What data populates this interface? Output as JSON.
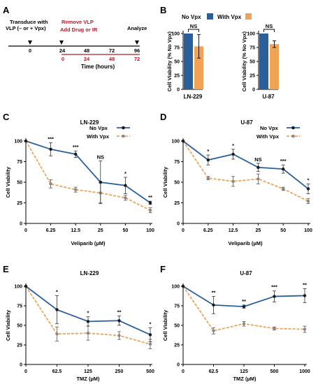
{
  "figure": {
    "panel_letters": [
      "A",
      "B",
      "C",
      "D",
      "E",
      "F"
    ],
    "timeline": {
      "top_labels": {
        "transduce": "Transduce with VLP (– or + Vpx)",
        "remove": "Remove VLP",
        "add": "Add Drug or IR",
        "analyze": "Analyze"
      },
      "axis_ticks": [
        "0",
        "24",
        "48",
        "72",
        "96"
      ],
      "red_ticks": [
        "0",
        "24",
        "48",
        "72"
      ],
      "axis_label": "Time (hours)",
      "colors": {
        "red": "#b5192b",
        "black": "#000000"
      }
    },
    "legend_b": {
      "no_vpx": "No Vpx",
      "with_vpx": "With Vpx"
    },
    "legend_line": {
      "no_vpx": "No Vpx",
      "with_vpx": "With Vpx"
    },
    "colors": {
      "no_vpx": "#2a5f9e",
      "with_vpx": "#f0a355",
      "with_vpx_marker": "#888888",
      "no_vpx_marker": "#1a1a1a"
    }
  },
  "chart_data": [
    {
      "panel": "B",
      "type": "bar",
      "title": "LN-229",
      "ylabel": "Cell Viability (% No Vpx)",
      "ylim": [
        0,
        100
      ],
      "ytick_labels": [
        "0",
        "25",
        "50",
        "75",
        "100"
      ],
      "categories": [
        "No Vpx",
        "With Vpx"
      ],
      "values": [
        100,
        77
      ],
      "errors": [
        0,
        21
      ],
      "annotation": "NS"
    },
    {
      "panel": "B",
      "type": "bar",
      "title": "U-87",
      "ylabel": "Cell Viability (% No Vpx)",
      "ylim": [
        0,
        100
      ],
      "ytick_labels": [
        "0",
        "25",
        "50",
        "75",
        "100"
      ],
      "categories": [
        "No Vpx",
        "With Vpx"
      ],
      "values": [
        100,
        81
      ],
      "errors": [
        0,
        6
      ],
      "annotation": "NS"
    },
    {
      "panel": "C",
      "type": "line",
      "title": "LN-229",
      "xlabel": "Veliparib (µM)",
      "ylabel": "Cell Viability",
      "x": [
        "0",
        "6.25",
        "12.5",
        "25",
        "50",
        "100"
      ],
      "ylim": [
        0,
        100
      ],
      "ytick_labels": [
        "0",
        "25",
        "50",
        "75",
        "100"
      ],
      "series": [
        {
          "name": "No Vpx",
          "values": [
            100,
            90,
            84,
            50,
            46,
            25
          ],
          "errors": [
            0,
            8,
            4,
            26,
            10,
            2
          ]
        },
        {
          "name": "With Vpx",
          "values": [
            100,
            48,
            41,
            37,
            31,
            16
          ],
          "errors": [
            0,
            5,
            3,
            12,
            3,
            3
          ]
        }
      ],
      "significance": [
        "",
        "***",
        "***",
        "NS",
        "*",
        "**"
      ]
    },
    {
      "panel": "D",
      "type": "line",
      "title": "U-87",
      "xlabel": "Veliparib (µM)",
      "ylabel": "Cell Viability",
      "x": [
        "0",
        "6.25",
        "12.5",
        "25",
        "50",
        "100"
      ],
      "ylim": [
        0,
        100
      ],
      "ytick_labels": [
        "0",
        "25",
        "50",
        "75",
        "100"
      ],
      "series": [
        {
          "name": "No Vpx",
          "values": [
            100,
            77,
            84,
            68,
            66,
            42
          ],
          "errors": [
            0,
            6,
            6,
            5,
            5,
            6
          ]
        },
        {
          "name": "With Vpx",
          "values": [
            100,
            55,
            51,
            54,
            42,
            27
          ],
          "errors": [
            0,
            2,
            6,
            6,
            2,
            3
          ]
        }
      ],
      "significance": [
        "",
        "*",
        "*",
        "NS",
        "***",
        "*"
      ]
    },
    {
      "panel": "E",
      "type": "line",
      "title": "LN-229",
      "xlabel": "TMZ (µM)",
      "ylabel": "Cell Viability",
      "x": [
        "0",
        "62.5",
        "125",
        "250",
        "500"
      ],
      "ylim": [
        0,
        100
      ],
      "ytick_labels": [
        "0",
        "25",
        "50",
        "75",
        "100"
      ],
      "series": [
        {
          "name": "No Vpx",
          "values": [
            100,
            70,
            55,
            56,
            38
          ],
          "errors": [
            0,
            18,
            6,
            6,
            9
          ]
        },
        {
          "name": "With Vpx",
          "values": [
            100,
            39,
            40,
            37,
            26
          ],
          "errors": [
            0,
            9,
            9,
            5,
            6
          ]
        }
      ],
      "significance": [
        "",
        "*",
        "*",
        "**",
        "*"
      ]
    },
    {
      "panel": "F",
      "type": "line",
      "title": "U-87",
      "xlabel": "TMZ (µM)",
      "ylabel": "Cell Viability",
      "x": [
        "0",
        "62.5",
        "125",
        "500",
        "1000"
      ],
      "ylim": [
        0,
        100
      ],
      "ytick_labels": [
        "0",
        "25",
        "50",
        "75",
        "100"
      ],
      "series": [
        {
          "name": "No Vpx",
          "values": [
            100,
            76,
            74,
            87,
            88
          ],
          "errors": [
            0,
            11,
            2,
            7,
            9
          ]
        },
        {
          "name": "With Vpx",
          "values": [
            100,
            43,
            52,
            46,
            45
          ],
          "errors": [
            0,
            4,
            3,
            2,
            4
          ]
        }
      ],
      "significance": [
        "",
        "**",
        "**",
        "***",
        "**"
      ]
    }
  ]
}
